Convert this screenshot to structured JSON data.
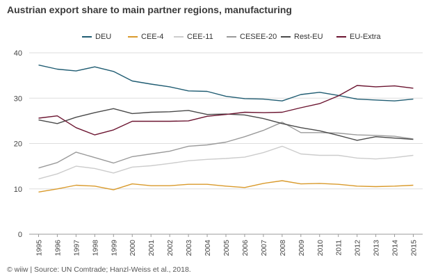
{
  "title": "Austrian export share to main partner regions, manufacturing",
  "source": "© wiiw | Source: UN Comtrade; Hanzl-Weiss et al., 2018.",
  "chart_data": {
    "type": "line",
    "title": "Austrian export share to main partner regions, manufacturing",
    "xlabel": "",
    "ylabel": "",
    "x": [
      "1995",
      "1996",
      "1997",
      "1998",
      "1999",
      "2000",
      "2001",
      "2002",
      "2003",
      "2004",
      "2005",
      "2006",
      "2007",
      "2008",
      "2009",
      "2010",
      "2011",
      "2012",
      "2013",
      "2014",
      "2015"
    ],
    "ylim": [
      0,
      40
    ],
    "yticks": [
      "0",
      "10",
      "20",
      "30",
      "40"
    ],
    "grid": "horizontal",
    "legend_position": "top",
    "series": [
      {
        "name": "DEU",
        "color": "#1f5c72",
        "values": [
          37.3,
          36.4,
          36.0,
          36.9,
          35.9,
          33.8,
          33.1,
          32.5,
          31.6,
          31.5,
          30.4,
          29.9,
          29.8,
          29.4,
          30.8,
          31.3,
          30.6,
          29.8,
          29.6,
          29.4,
          29.8
        ]
      },
      {
        "name": "CEE-4",
        "color": "#d99a2b",
        "values": [
          9.3,
          10.0,
          10.8,
          10.6,
          9.8,
          11.1,
          10.7,
          10.7,
          11.0,
          11.0,
          10.6,
          10.3,
          11.2,
          11.8,
          11.1,
          11.2,
          11.0,
          10.6,
          10.5,
          10.6,
          10.8
        ]
      },
      {
        "name": "CEE-11",
        "color": "#cccccc",
        "values": [
          12.2,
          13.3,
          15.0,
          14.5,
          13.5,
          14.8,
          15.1,
          15.6,
          16.2,
          16.5,
          16.7,
          17.0,
          18.0,
          19.4,
          17.7,
          17.4,
          17.4,
          16.8,
          16.6,
          16.9,
          17.4
        ]
      },
      {
        "name": "CESEE-20",
        "color": "#9a9a9a",
        "values": [
          14.6,
          15.8,
          18.1,
          16.9,
          15.7,
          17.1,
          17.7,
          18.3,
          19.4,
          19.7,
          20.3,
          21.5,
          22.9,
          24.7,
          22.4,
          22.4,
          22.3,
          21.9,
          21.8,
          21.6,
          21.0
        ]
      },
      {
        "name": "Rest-EU",
        "color": "#4a4a4a",
        "values": [
          25.2,
          24.4,
          25.8,
          26.8,
          27.7,
          26.6,
          26.9,
          27.0,
          27.3,
          26.4,
          26.5,
          26.3,
          25.5,
          24.4,
          23.5,
          22.8,
          21.8,
          20.7,
          21.5,
          21.2,
          20.9
        ]
      },
      {
        "name": "EU-Extra",
        "color": "#6b1430",
        "values": [
          25.6,
          26.1,
          23.5,
          21.9,
          23.0,
          24.9,
          24.9,
          24.9,
          25.0,
          26.0,
          26.4,
          26.9,
          26.8,
          26.9,
          27.9,
          28.8,
          30.5,
          32.8,
          32.5,
          32.7,
          32.2
        ]
      }
    ]
  }
}
